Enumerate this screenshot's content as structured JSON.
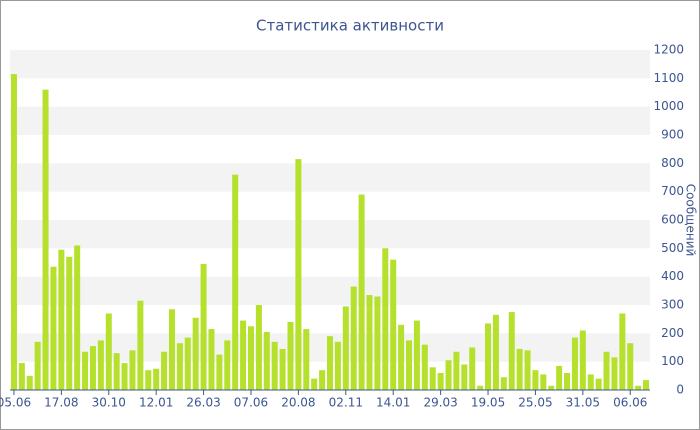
{
  "chart_data": {
    "type": "bar",
    "title": "Статистика активности",
    "y_label": "Сообщений",
    "categories": [
      "05.06",
      null,
      null,
      null,
      null,
      null,
      "17.08",
      null,
      null,
      null,
      null,
      null,
      "30.10",
      null,
      null,
      null,
      null,
      null,
      "12.01",
      null,
      null,
      null,
      null,
      null,
      "26.03",
      null,
      null,
      null,
      null,
      null,
      "07.06",
      null,
      null,
      null,
      null,
      null,
      "20.08",
      null,
      null,
      null,
      null,
      null,
      "02.11",
      null,
      null,
      null,
      null,
      null,
      "14.01",
      null,
      null,
      null,
      null,
      null,
      "29.03",
      null,
      null,
      null,
      null,
      null,
      "19.05",
      null,
      null,
      null,
      null,
      null,
      "25.05",
      null,
      null,
      null,
      null,
      null,
      "31.05",
      null,
      null,
      null,
      null,
      null,
      "06.06",
      null,
      null
    ],
    "values": [
      1115,
      95,
      50,
      170,
      1060,
      435,
      495,
      470,
      510,
      135,
      155,
      175,
      270,
      130,
      95,
      140,
      315,
      70,
      75,
      135,
      285,
      165,
      185,
      255,
      445,
      215,
      125,
      175,
      760,
      245,
      225,
      300,
      205,
      170,
      145,
      240,
      815,
      215,
      40,
      70,
      190,
      170,
      295,
      365,
      690,
      335,
      330,
      500,
      460,
      230,
      175,
      245,
      160,
      80,
      60,
      105,
      135,
      90,
      150,
      15,
      235,
      265,
      45,
      275,
      145,
      140,
      70,
      55,
      15,
      85,
      60,
      185,
      210,
      55,
      40,
      135,
      115,
      270,
      165,
      15,
      35
    ],
    "color": "#b5e02c",
    "ylim": [
      0,
      1200
    ],
    "yticks": [
      0,
      100,
      200,
      300,
      400,
      500,
      600,
      700,
      800,
      900,
      1000,
      1100,
      1200
    ],
    "grid": "bands"
  }
}
